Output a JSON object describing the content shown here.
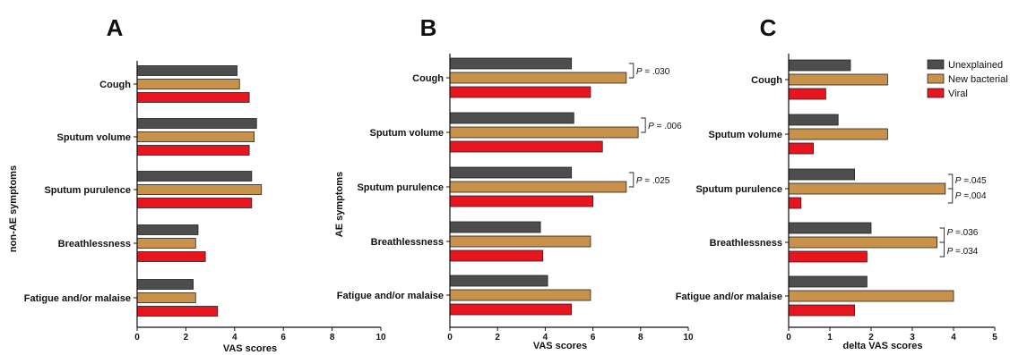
{
  "chart_data": [
    {
      "type": "bar",
      "orientation": "horizontal",
      "panel": "A",
      "categories": [
        "Cough",
        "Sputum volume",
        "Sputum purulence",
        "Breathlessness",
        "Fatigue and/or malaise"
      ],
      "series": [
        {
          "name": "Unexplained",
          "values": [
            4.1,
            4.9,
            4.7,
            2.5,
            2.3
          ]
        },
        {
          "name": "New bacterial",
          "values": [
            4.2,
            4.8,
            5.1,
            2.4,
            2.4
          ]
        },
        {
          "name": "Viral",
          "values": [
            4.6,
            4.6,
            4.7,
            2.8,
            3.3
          ]
        }
      ],
      "xlabel": "VAS scores",
      "ylabel": "non-AE symptoms",
      "xlim": [
        0,
        10
      ],
      "xticks": [
        "0",
        "2",
        "4",
        "6",
        "8",
        "10"
      ],
      "annotations": []
    },
    {
      "type": "bar",
      "orientation": "horizontal",
      "panel": "B",
      "categories": [
        "Cough",
        "Sputum volume",
        "Sputum purulence",
        "Breathlessness",
        "Fatigue and/or malaise"
      ],
      "series": [
        {
          "name": "Unexplained",
          "values": [
            5.1,
            5.2,
            5.1,
            3.8,
            4.1
          ]
        },
        {
          "name": "New bacterial",
          "values": [
            7.4,
            7.9,
            7.4,
            5.9,
            5.9
          ]
        },
        {
          "name": "Viral",
          "values": [
            5.9,
            6.4,
            6.0,
            3.9,
            5.1
          ]
        }
      ],
      "xlabel": "VAS scores",
      "ylabel": "AE symptoms",
      "xlim": [
        0,
        10
      ],
      "xticks": [
        "0",
        "2",
        "4",
        "6",
        "8",
        "10"
      ],
      "annotations": [
        {
          "category": "Cough",
          "text": "= .030"
        },
        {
          "category": "Sputum volume",
          "text": "= .006"
        },
        {
          "category": "Sputum purulence",
          "text": "= .025"
        }
      ]
    },
    {
      "type": "bar",
      "orientation": "horizontal",
      "panel": "C",
      "categories": [
        "Cough",
        "Sputum volume",
        "Sputum purulence",
        "Breathlessness",
        "Fatigue and/or malaise"
      ],
      "series": [
        {
          "name": "Unexplained",
          "values": [
            1.5,
            1.2,
            1.6,
            2.0,
            1.9
          ]
        },
        {
          "name": "New bacterial",
          "values": [
            2.4,
            2.4,
            3.8,
            3.6,
            4.0
          ]
        },
        {
          "name": "Viral",
          "values": [
            0.9,
            0.6,
            0.3,
            1.9,
            1.6
          ]
        }
      ],
      "xlabel": "delta VAS scores",
      "ylabel": "",
      "xlim": [
        0,
        5
      ],
      "xticks": [
        "0",
        "1",
        "2",
        "3",
        "4",
        "5"
      ],
      "annotations": [
        {
          "category": "Sputum purulence",
          "text": "=.045"
        },
        {
          "category": "Sputum purulence",
          "text": "=.004"
        },
        {
          "category": "Breathlessness",
          "text": "=.036"
        },
        {
          "category": "Breathlessness",
          "text": "=.034"
        }
      ]
    }
  ],
  "colors": {
    "Unexplained": "#4d4d4d",
    "New bacterial": "#c8924a",
    "Viral": "#e8141e"
  },
  "legend": {
    "position": "top-right",
    "items": [
      "Unexplained",
      "New bacterial",
      "Viral"
    ]
  },
  "p_prefix": "P"
}
